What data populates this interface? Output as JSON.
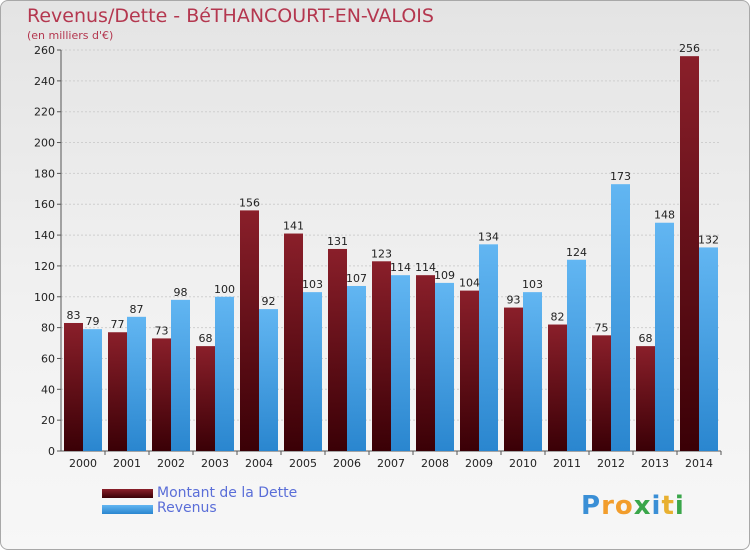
{
  "chart_data": {
    "type": "bar",
    "title": "Revenus/Dette - BéTHANCOURT-EN-VALOIS",
    "subtitle": "(en milliers d'€)",
    "categories": [
      "2000",
      "2001",
      "2002",
      "2003",
      "2004",
      "2005",
      "2006",
      "2007",
      "2008",
      "2009",
      "2010",
      "2011",
      "2012",
      "2013",
      "2014"
    ],
    "series": [
      {
        "name": "Montant de la Dette",
        "values": [
          83,
          77,
          73,
          68,
          156,
          141,
          131,
          123,
          114,
          104,
          93,
          82,
          75,
          68,
          256
        ]
      },
      {
        "name": "Revenus",
        "values": [
          79,
          87,
          98,
          100,
          92,
          103,
          107,
          114,
          109,
          134,
          103,
          124,
          173,
          148,
          132
        ]
      }
    ],
    "ylim": [
      0,
      260
    ],
    "yticks": [
      0,
      20,
      40,
      60,
      80,
      100,
      120,
      140,
      160,
      180,
      200,
      220,
      240,
      260
    ],
    "grid": true,
    "legend_position": "bottom-left"
  },
  "colors": {
    "debt_top": "#8a1f2a",
    "debt_bottom": "#3a0006",
    "rev_top": "#62b6f2",
    "rev_bottom": "#2a86cf",
    "title": "#b4374f"
  },
  "logo": {
    "letters": [
      "P",
      "r",
      "o",
      "x",
      "i",
      "t",
      "i"
    ],
    "colors": [
      "#3a8fd6",
      "#f29d2c",
      "#f29d2c",
      "#3aa64a",
      "#3a8fd6",
      "#e8b030",
      "#3aa64a"
    ]
  }
}
